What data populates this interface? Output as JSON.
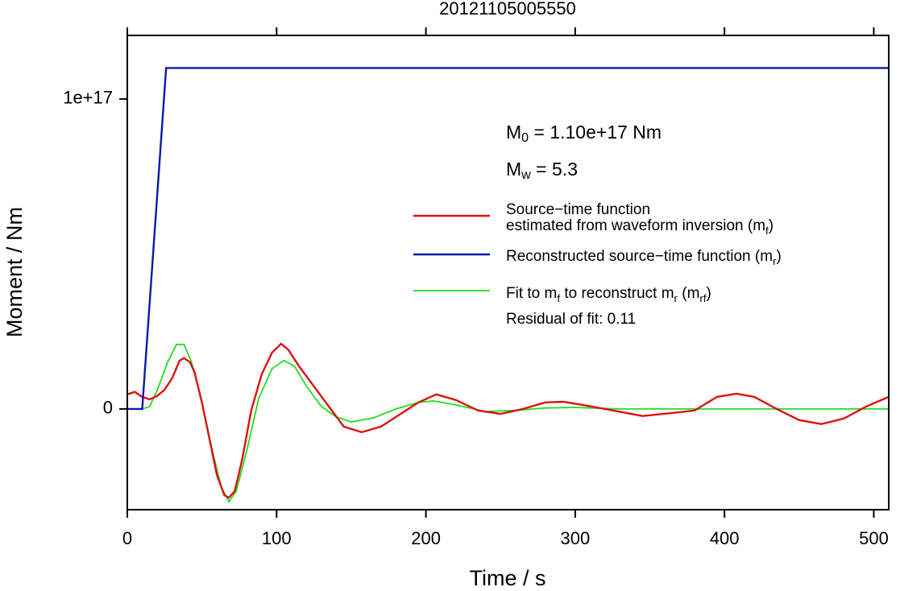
{
  "chart_data": {
    "type": "line",
    "title": "20121105005550",
    "x_label": "Time / s",
    "y_label": "Moment / Nm",
    "xlim": [
      0,
      510
    ],
    "ylim": [
      -3.25e+16,
      1.205e+17
    ],
    "xticks": [
      0,
      100,
      200,
      300,
      400,
      500
    ],
    "yticks": [
      0,
      {
        "value": 1e+17,
        "label": "1e+17"
      }
    ],
    "annotations": [
      [
        "M",
        "0",
        " = 1.10e+17 Nm"
      ],
      [
        "M",
        "w",
        " = 5.3"
      ],
      [
        "Residual of fit: 0.11"
      ]
    ],
    "series": [
      {
        "name": [
          [
            "Source−time function"
          ],
          [
            "estimated from waveform inversion (m",
            "f",
            ")"
          ]
        ],
        "color": "#dd1111",
        "x": [
          0,
          5,
          10,
          15,
          20,
          25,
          30,
          35,
          38,
          42,
          45,
          50,
          55,
          60,
          65,
          68,
          72,
          77,
          83,
          90,
          97,
          103,
          108,
          115,
          125,
          135,
          145,
          157,
          170,
          185,
          195,
          207,
          220,
          235,
          250,
          265,
          280,
          292,
          305,
          320,
          345,
          365,
          380,
          395,
          408,
          420,
          435,
          450,
          465,
          480,
          495,
          510
        ],
        "values": [
          4700000000000000.0,
          5500000000000000.0,
          3900000000000000.0,
          3100000000000000.0,
          4200000000000000.0,
          6200000000000000.0,
          9900000000000000.0,
          1.56e+16,
          1.64e+16,
          1.51e+16,
          1.19e+16,
          2100000000000000.0,
          -9600000000000000.0,
          -2.13e+16,
          -2.78e+16,
          -2.86e+16,
          -2.65e+16,
          -1.61e+16,
          -500000000000000.0,
          1.12e+16,
          1.82e+16,
          2.1e+16,
          1.9e+16,
          1.38e+16,
          7300000000000000.0,
          800000000000000.0,
          -5700000000000000.0,
          -7500000000000000.0,
          -5700000000000000.0,
          -1000000000000000.0,
          2100000000000000.0,
          4700000000000000.0,
          2900000000000000.0,
          -500000000000000.0,
          -1600000000000000.0,
          0,
          2100000000000000.0,
          2300000000000000.0,
          1300000000000000.0,
          0,
          -2300000000000000.0,
          -1300000000000000.0,
          -500000000000000.0,
          3900000000000000.0,
          4900000000000000.0,
          3900000000000000.0,
          0,
          -3600000000000000.0,
          -4900000000000000.0,
          -3100000000000000.0,
          800000000000000.0,
          3900000000000000.0
        ]
      },
      {
        "name": [
          [
            "Reconstructed source−time function (m",
            "r",
            ")"
          ]
        ],
        "color": "#0a1aaa",
        "x": [
          0,
          10,
          26,
          510
        ],
        "values": [
          0,
          0,
          1.1e+17,
          1.1e+17
        ]
      },
      {
        "name": [
          [
            "Fit to m",
            "f",
            " to reconstruct m",
            "r",
            " (m",
            "rf",
            ")"
          ]
        ],
        "color": "#22dd22",
        "x": [
          0,
          10,
          15,
          20,
          27,
          33,
          38,
          43,
          50,
          57,
          63,
          68,
          73,
          80,
          88,
          97,
          105,
          112,
          120,
          130,
          140,
          150,
          165,
          180,
          195,
          205,
          220,
          240,
          260,
          280,
          300,
          330,
          370,
          510
        ],
        "values": [
          0,
          0,
          800000000000000.0,
          6000000000000000.0,
          1.51e+16,
          2.08e+16,
          2.08e+16,
          1.51e+16,
          2100000000000000.0,
          -1.35e+16,
          -2.52e+16,
          -2.99e+16,
          -2.65e+16,
          -1.35e+16,
          3400000000000000.0,
          1.3e+16,
          1.56e+16,
          1.38e+16,
          7300000000000000.0,
          800000000000000.0,
          -2600000000000000.0,
          -4200000000000000.0,
          -2900000000000000.0,
          0,
          2100000000000000.0,
          2600000000000000.0,
          1300000000000000.0,
          -800000000000000.0,
          -500000000000000.0,
          300000000000000.0,
          500000000000000.0,
          0,
          0,
          0
        ]
      }
    ]
  }
}
